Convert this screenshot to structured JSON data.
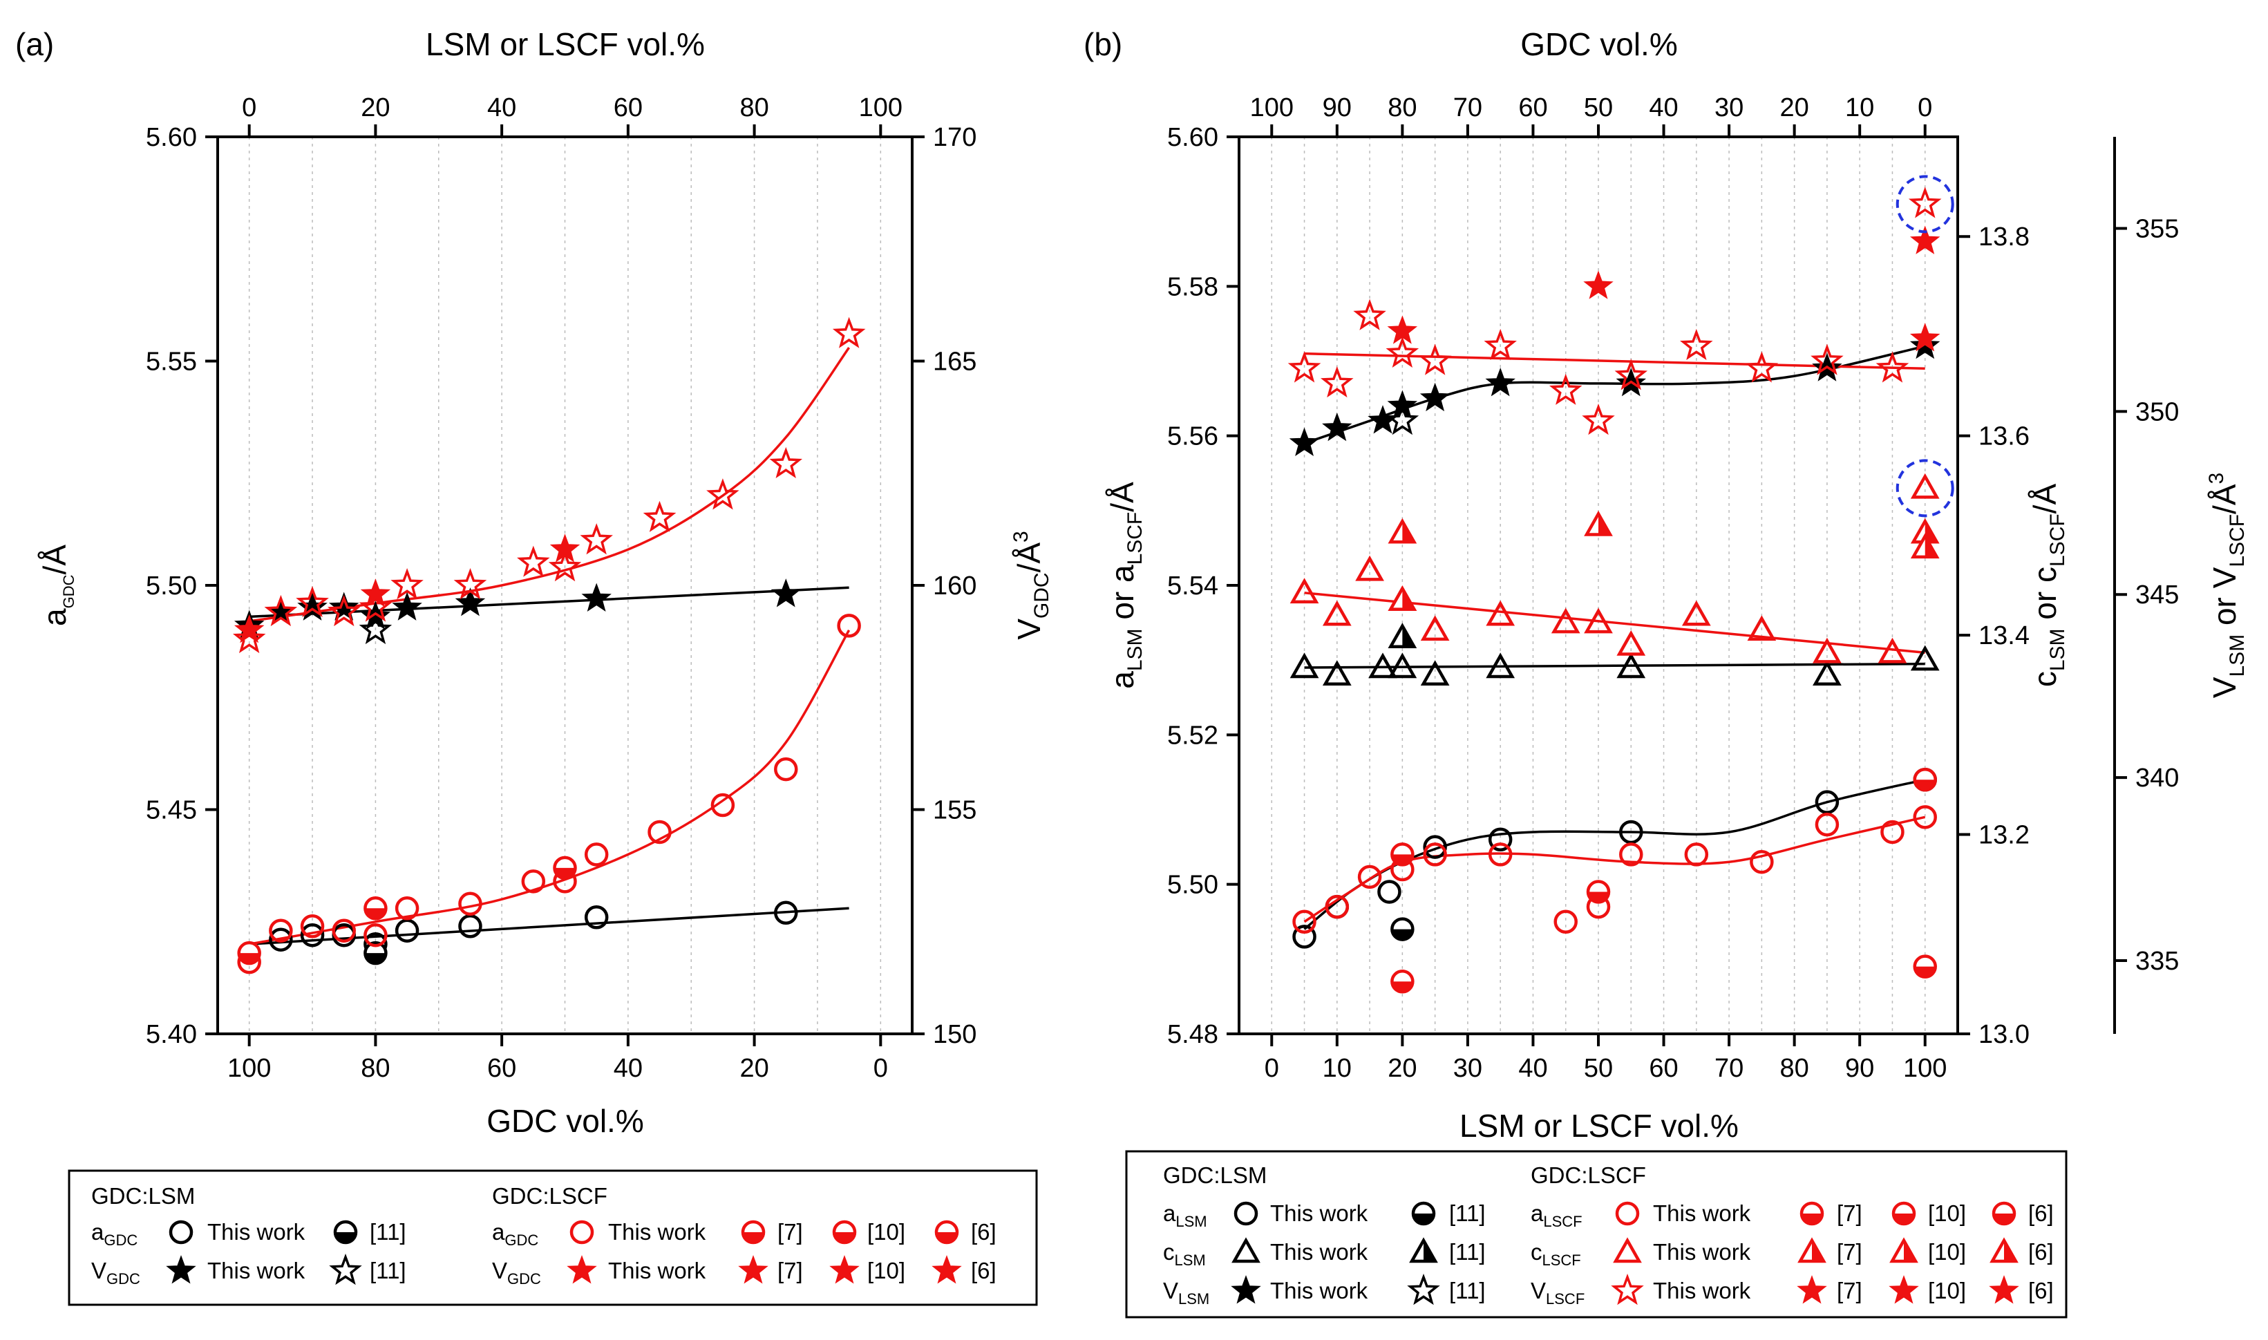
{
  "colors": {
    "this_work_red": "#ee1111",
    "black": "#000000",
    "highlight": "#2233dd",
    "grid": "#bbbbbb"
  },
  "chart_data": [
    {
      "panel": "(a)",
      "type": "scatter",
      "xlabel_bottom": "GDC vol.%",
      "xlabel_top": "LSM or LSCF vol.%",
      "ylabel_left": "aGDC/Å",
      "ylabel_right": "VGDC/Å3",
      "bottom_ticks": [
        "100",
        "80",
        "60",
        "40",
        "20",
        "0"
      ],
      "top_ticks": [
        "0",
        "20",
        "40",
        "60",
        "80",
        "100"
      ],
      "left_ticks": [
        "5.40",
        "5.45",
        "5.50",
        "5.55",
        "5.60"
      ],
      "right_ticks": [
        "150",
        "155",
        "160",
        "165",
        "170"
      ],
      "xlim_gdc": [
        105,
        -5
      ],
      "ylim_left": [
        5.4,
        5.6
      ],
      "ylim_right": [
        150,
        170
      ],
      "series": [
        {
          "name": "GDC:LSM aGDC This work",
          "axis": "left",
          "color": "black",
          "marker": "circle",
          "x_gdc": [
            95,
            90,
            85,
            80,
            75,
            65,
            45,
            15
          ],
          "y": [
            5.421,
            5.422,
            5.422,
            5.42,
            5.423,
            5.424,
            5.426,
            5.427
          ]
        },
        {
          "name": "GDC:LSM aGDC [11]",
          "axis": "left",
          "color": "black",
          "marker": "circle-half",
          "x_gdc": [
            80
          ],
          "y": [
            5.418
          ]
        },
        {
          "name": "GDC:LSCF aGDC This work",
          "axis": "left",
          "color": "red",
          "marker": "circle",
          "x_gdc": [
            100,
            95,
            90,
            85,
            80,
            75,
            65,
            55,
            50,
            45,
            35,
            25,
            15,
            5
          ],
          "y": [
            5.416,
            5.423,
            5.424,
            5.423,
            5.422,
            5.428,
            5.429,
            5.434,
            5.434,
            5.44,
            5.445,
            5.451,
            5.459,
            5.491
          ]
        },
        {
          "name": "GDC:LSCF aGDC [7]/[10]/[6]",
          "axis": "left",
          "color": "red",
          "marker": "circle-half",
          "x_gdc": [
            100,
            80,
            50
          ],
          "y": [
            5.418,
            5.428,
            5.437
          ]
        },
        {
          "name": "GDC:LSM VGDC This work",
          "axis": "left",
          "color": "black",
          "marker": "star",
          "x_gdc": [
            100,
            95,
            90,
            85,
            80,
            75,
            65,
            45,
            15
          ],
          "y": [
            5.491,
            5.494,
            5.495,
            5.495,
            5.493,
            5.495,
            5.496,
            5.497,
            5.498
          ]
        },
        {
          "name": "GDC:LSM VGDC [11]",
          "axis": "left",
          "color": "black",
          "marker": "star-open",
          "x_gdc": [
            80
          ],
          "y": [
            5.49
          ]
        },
        {
          "name": "GDC:LSCF VGDC This work",
          "axis": "left",
          "color": "red",
          "marker": "star-open",
          "x_gdc": [
            100,
            95,
            90,
            85,
            80,
            75,
            65,
            55,
            50,
            45,
            35,
            25,
            15,
            5
          ],
          "y": [
            5.488,
            5.494,
            5.496,
            5.494,
            5.495,
            5.5,
            5.5,
            5.505,
            5.504,
            5.51,
            5.515,
            5.52,
            5.527,
            5.556
          ]
        },
        {
          "name": "GDC:LSCF VGDC [7]/[10]/[6]",
          "axis": "left",
          "color": "red",
          "marker": "star",
          "x_gdc": [
            100,
            80,
            50
          ],
          "y": [
            5.49,
            5.498,
            5.508
          ]
        }
      ],
      "fits": [
        {
          "color": "black",
          "x_gdc": [
            100,
            5
          ],
          "y": [
            5.42,
            5.428
          ]
        },
        {
          "color": "black",
          "x_gdc": [
            100,
            5
          ],
          "y": [
            5.493,
            5.4995
          ]
        },
        {
          "color": "red",
          "x_gdc": [
            100,
            80,
            60,
            40,
            25,
            15,
            5
          ],
          "y": [
            5.42,
            5.425,
            5.43,
            5.44,
            5.452,
            5.465,
            5.49
          ]
        },
        {
          "color": "red",
          "x_gdc": [
            100,
            80,
            60,
            40,
            25,
            15,
            5
          ],
          "y": [
            5.492,
            5.496,
            5.5,
            5.508,
            5.52,
            5.533,
            5.553
          ]
        }
      ]
    },
    {
      "panel": "(b)",
      "type": "scatter",
      "xlabel_bottom": "LSM or LSCF vol.%",
      "xlabel_top": "GDC vol.%",
      "ylabel_left": "aLSM or aLSCF/Å",
      "ylabel_right1": "cLSM or cLSCF/Å",
      "ylabel_right2": "VLSM or VLSCF/Å3",
      "bottom_ticks": [
        "0",
        "10",
        "20",
        "30",
        "40",
        "50",
        "60",
        "70",
        "80",
        "90",
        "100"
      ],
      "top_ticks": [
        "100",
        "90",
        "80",
        "70",
        "60",
        "50",
        "40",
        "30",
        "20",
        "10",
        "0"
      ],
      "left_ticks": [
        "5.48",
        "5.50",
        "5.52",
        "5.54",
        "5.56",
        "5.58",
        "5.60"
      ],
      "right1_ticks": [
        "13.0",
        "13.2",
        "13.4",
        "13.6",
        "13.8"
      ],
      "right2_ticks": [
        "335",
        "340",
        "345",
        "350",
        "355"
      ],
      "xlim": [
        -5,
        105
      ],
      "ylim_left": [
        5.48,
        5.6
      ],
      "ylim_right1": [
        13.0,
        13.9
      ],
      "ylim_right2": [
        333,
        357.5
      ],
      "series": [
        {
          "name": "aLSM This work",
          "color": "black",
          "marker": "circle",
          "x": [
            5,
            10,
            18,
            25,
            35,
            55,
            85,
            100
          ],
          "y": [
            5.493,
            5.497,
            5.499,
            5.505,
            5.506,
            5.507,
            5.511,
            5.514
          ]
        },
        {
          "name": "aLSM [11]",
          "color": "black",
          "marker": "circle-half",
          "x": [
            20
          ],
          "y": [
            5.494
          ]
        },
        {
          "name": "aLSCF This work",
          "color": "red",
          "marker": "circle",
          "x": [
            5,
            10,
            15,
            20,
            25,
            35,
            45,
            50,
            55,
            65,
            75,
            85,
            95,
            100
          ],
          "y": [
            5.495,
            5.497,
            5.501,
            5.502,
            5.504,
            5.504,
            5.495,
            5.497,
            5.504,
            5.504,
            5.503,
            5.508,
            5.507,
            5.509
          ]
        },
        {
          "name": "aLSCF [7]/[10]/[6]",
          "color": "red",
          "marker": "circle-half",
          "x": [
            20,
            20,
            50,
            100,
            100
          ],
          "y": [
            5.487,
            5.504,
            5.499,
            5.489,
            5.514
          ]
        },
        {
          "name": "cLSM This work",
          "color": "black",
          "marker": "triangle",
          "x": [
            5,
            10,
            17,
            20,
            25,
            35,
            55,
            85,
            100
          ],
          "y": [
            5.529,
            5.528,
            5.529,
            5.529,
            5.528,
            5.529,
            5.529,
            5.528,
            5.53
          ]
        },
        {
          "name": "cLSM [11]",
          "color": "black",
          "marker": "triangle-half",
          "x": [
            20
          ],
          "y": [
            5.533
          ]
        },
        {
          "name": "cLSCF This work",
          "color": "red",
          "marker": "triangle",
          "x": [
            5,
            10,
            15,
            20,
            25,
            35,
            45,
            50,
            55,
            65,
            75,
            85,
            95,
            100
          ],
          "y": [
            5.539,
            5.536,
            5.542,
            5.538,
            5.534,
            5.536,
            5.535,
            5.535,
            5.532,
            5.536,
            5.534,
            5.531,
            5.531,
            5.553
          ]
        },
        {
          "name": "cLSCF [7]/[10]/[6]",
          "color": "red",
          "marker": "triangle-half",
          "x": [
            20,
            20,
            50,
            100,
            100
          ],
          "y": [
            5.547,
            5.538,
            5.548,
            5.547,
            5.545
          ]
        },
        {
          "name": "VLSM This work",
          "color": "black",
          "marker": "star",
          "x": [
            5,
            10,
            17,
            20,
            25,
            35,
            55,
            85,
            100
          ],
          "y": [
            5.559,
            5.561,
            5.562,
            5.564,
            5.565,
            5.567,
            5.567,
            5.569,
            5.572
          ]
        },
        {
          "name": "VLSM [11]",
          "color": "black",
          "marker": "star-open",
          "x": [
            20
          ],
          "y": [
            5.562
          ]
        },
        {
          "name": "VLSCF This work",
          "color": "red",
          "marker": "star-open",
          "x": [
            5,
            10,
            15,
            20,
            25,
            35,
            45,
            50,
            55,
            65,
            75,
            85,
            95,
            100
          ],
          "y": [
            5.569,
            5.567,
            5.576,
            5.571,
            5.57,
            5.572,
            5.566,
            5.562,
            5.568,
            5.572,
            5.569,
            5.57,
            5.569,
            5.591
          ]
        },
        {
          "name": "VLSCF [7]/[10]/[6]",
          "color": "red",
          "marker": "star",
          "x": [
            20,
            50,
            100,
            100
          ],
          "y": [
            5.574,
            5.58,
            5.586,
            5.573
          ]
        }
      ],
      "highlights": [
        {
          "x": 100,
          "y": 5.591
        },
        {
          "x": 100,
          "y": 5.553
        }
      ],
      "fits": [
        {
          "color": "black",
          "x": [
            5,
            12,
            20,
            30,
            40,
            55,
            70,
            85,
            100
          ],
          "y": [
            5.494,
            5.499,
            5.503,
            5.506,
            5.507,
            5.507,
            5.507,
            5.511,
            5.514
          ]
        },
        {
          "color": "red",
          "x": [
            5,
            12,
            20,
            30,
            40,
            55,
            70,
            85,
            100
          ],
          "y": [
            5.495,
            5.499,
            5.503,
            5.504,
            5.504,
            5.503,
            5.503,
            5.506,
            5.509
          ]
        },
        {
          "color": "black",
          "x": [
            5,
            100
          ],
          "y": [
            5.529,
            5.5295
          ]
        },
        {
          "color": "red",
          "x": [
            5,
            100
          ],
          "y": [
            5.539,
            5.531
          ]
        },
        {
          "color": "black",
          "x": [
            5,
            15,
            25,
            35,
            50,
            65,
            80,
            100
          ],
          "y": [
            5.559,
            5.562,
            5.565,
            5.567,
            5.567,
            5.567,
            5.568,
            5.572
          ]
        },
        {
          "color": "red",
          "x": [
            5,
            100
          ],
          "y": [
            5.571,
            5.569
          ]
        }
      ]
    }
  ],
  "legend_a": {
    "lsm_title": "GDC:LSM",
    "lscf_title": "GDC:LSCF",
    "a_label": "aGDC",
    "v_label": "VGDC",
    "this_work": "This work",
    "ref11": "[11]",
    "ref7": "[7]",
    "ref10": "[10]",
    "ref6": "[6]"
  },
  "legend_b": {
    "lsm_title": "GDC:LSM",
    "lscf_title": "GDC:LSCF",
    "a_lsm": "aLSM",
    "c_lsm": "cLSM",
    "v_lsm": "VLSM",
    "a_lscf": "aLSCF",
    "c_lscf": "cLSCF",
    "v_lscf": "VLSCF",
    "this_work": "This work",
    "ref11": "[11]",
    "ref7": "[7]",
    "ref10": "[10]",
    "ref6": "[6]"
  }
}
